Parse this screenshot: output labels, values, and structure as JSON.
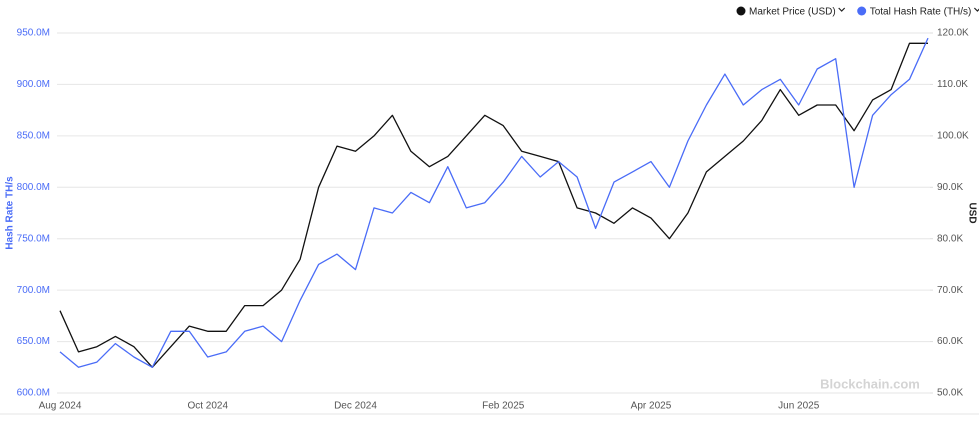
{
  "chart_data": {
    "type": "line",
    "categories": [
      "Aug 2024",
      null,
      null,
      null,
      null,
      null,
      null,
      null,
      "Oct 2024",
      null,
      null,
      null,
      null,
      null,
      null,
      null,
      "Dec 2024",
      null,
      null,
      null,
      null,
      null,
      null,
      null,
      "Feb 2025",
      null,
      null,
      null,
      null,
      null,
      null,
      null,
      "Apr 2025",
      null,
      null,
      null,
      null,
      null,
      null,
      null,
      "Jun 2025",
      null,
      null,
      null,
      null,
      null,
      null,
      null
    ],
    "ylabel": "Hash Rate TH/s",
    "y2label": "USD",
    "ylim": [
      600000000,
      950000000
    ],
    "yticks": [
      {
        "value": 600000000,
        "label": "600.0M"
      },
      {
        "value": 650000000,
        "label": "650.0M"
      },
      {
        "value": 700000000,
        "label": "700.0M"
      },
      {
        "value": 750000000,
        "label": "750.0M"
      },
      {
        "value": 800000000,
        "label": "800.0M"
      },
      {
        "value": 850000000,
        "label": "850.0M"
      },
      {
        "value": 900000000,
        "label": "900.0M"
      },
      {
        "value": 950000000,
        "label": "950.0M"
      }
    ],
    "y2lim": [
      50000,
      120000
    ],
    "y2ticks": [
      {
        "value": 50000,
        "label": "50.0K"
      },
      {
        "value": 60000,
        "label": "60.0K"
      },
      {
        "value": 70000,
        "label": "70.0K"
      },
      {
        "value": 80000,
        "label": "80.0K"
      },
      {
        "value": 90000,
        "label": "90.0K"
      },
      {
        "value": 100000,
        "label": "100.0K"
      },
      {
        "value": 110000,
        "label": "110.0K"
      },
      {
        "value": 120000,
        "label": "120.0K"
      }
    ],
    "grid": true,
    "legend": "top-right",
    "watermark": "Blockchain.com",
    "series": [
      {
        "name": "Market Price (USD)",
        "color": "#111111",
        "axis": "y2",
        "values": [
          66000,
          58000,
          59000,
          61000,
          59000,
          55000,
          59000,
          63000,
          62000,
          62000,
          67000,
          67000,
          70000,
          76000,
          90000,
          98000,
          97000,
          100000,
          104000,
          97000,
          94000,
          96000,
          100000,
          104000,
          102000,
          97000,
          96000,
          95000,
          86000,
          85000,
          83000,
          86000,
          84000,
          80000,
          85000,
          93000,
          96000,
          99000,
          103000,
          109000,
          104000,
          106000,
          106000,
          101000,
          107000,
          109000,
          118000,
          118000
        ]
      },
      {
        "name": "Total Hash Rate (TH/s)",
        "color": "#4a6cf7",
        "values": [
          640000000,
          625000000,
          630000000,
          648000000,
          635000000,
          625000000,
          660000000,
          660000000,
          635000000,
          640000000,
          660000000,
          665000000,
          650000000,
          690000000,
          725000000,
          735000000,
          720000000,
          780000000,
          775000000,
          795000000,
          785000000,
          820000000,
          780000000,
          785000000,
          805000000,
          830000000,
          810000000,
          825000000,
          810000000,
          760000000,
          805000000,
          815000000,
          825000000,
          800000000,
          845000000,
          880000000,
          910000000,
          880000000,
          895000000,
          905000000,
          880000000,
          915000000,
          925000000,
          800000000,
          870000000,
          890000000,
          905000000,
          945000000
        ]
      }
    ]
  }
}
